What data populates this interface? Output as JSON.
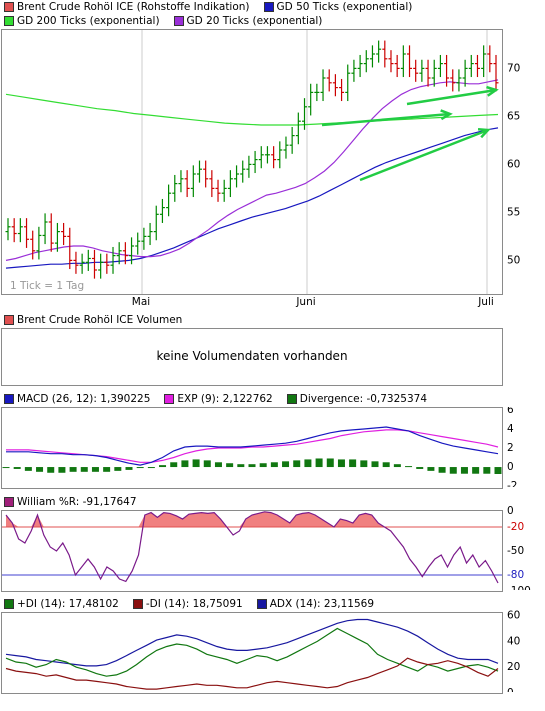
{
  "charts": {
    "price": {
      "legend": [
        {
          "label": "Brent Crude Rohöl ICE (Rohstoffe Indikation)",
          "color": "#e05050"
        },
        {
          "label": "GD 50 Ticks (exponential)",
          "color": "#1818c0"
        },
        {
          "label": "GD 200 Ticks (exponential)",
          "color": "#33dd33"
        },
        {
          "label": "GD 20 Ticks (exponential)",
          "color": "#9a2fd8"
        }
      ],
      "tick_note": "1 Tick = 1 Tag",
      "x_labels": [
        "Mai",
        "Juni",
        "Juli"
      ],
      "y_ticks": [
        "70",
        "65",
        "60",
        "55",
        "50"
      ]
    },
    "volume": {
      "legend": [
        {
          "label": "Brent Crude Rohöl ICE Volumen",
          "color": "#e05050"
        }
      ],
      "message": "keine Volumendaten vorhanden"
    },
    "macd": {
      "legend": [
        {
          "label": "MACD (26, 12): 1,390225",
          "color": "#1818c0"
        },
        {
          "label": "EXP (9): 2,122762",
          "color": "#e020e0"
        },
        {
          "label": "Divergence: -0,7325374",
          "color": "#117711"
        }
      ],
      "y_ticks": [
        "6",
        "4",
        "2",
        "0",
        "-2"
      ]
    },
    "williams": {
      "legend": [
        {
          "label": "William %R: -91,17647",
          "color": "#a0207a"
        }
      ],
      "y_ticks": [
        "0",
        "-20",
        "-50",
        "-80",
        "-100"
      ],
      "ref_labels": [
        "-20",
        "-80"
      ]
    },
    "dmi": {
      "legend": [
        {
          "label": "+DI (14): 17,48102",
          "color": "#117711"
        },
        {
          "label": "-DI (14): 18,75091",
          "color": "#8a1010"
        },
        {
          "label": "ADX (14): 23,11569",
          "color": "#1818a0"
        }
      ],
      "y_ticks": [
        "60",
        "40",
        "20",
        "0"
      ]
    }
  },
  "chart_data": [
    {
      "type": "candlestick",
      "title": "Brent Crude Rohöl ICE (Rohstoffe Indikation)",
      "ylim": [
        46.5,
        74
      ],
      "x_range": [
        0,
        100
      ],
      "x_month_ticks": {
        "Mai": 28,
        "Juni": 61,
        "Juli": 97
      },
      "candles_close": [
        53.5,
        52.8,
        53.5,
        52.2,
        51.0,
        52.6,
        54.0,
        51.8,
        53.0,
        52.5,
        50.0,
        49.5,
        49.8,
        50.2,
        49.0,
        49.8,
        49.5,
        50.5,
        51.0,
        50.5,
        51.5,
        52.0,
        52.5,
        53.0,
        54.8,
        55.5,
        57.0,
        58.0,
        58.5,
        57.5,
        59.0,
        59.5,
        58.5,
        57.5,
        57.0,
        57.5,
        58.5,
        59.0,
        59.5,
        60.0,
        60.5,
        61.0,
        61.0,
        60.5,
        61.5,
        62.0,
        63.0,
        64.5,
        66.0,
        67.5,
        67.5,
        69.0,
        68.5,
        68.0,
        67.5,
        69.5,
        70.0,
        70.5,
        71.0,
        71.5,
        72.0,
        71.0,
        70.5,
        70.0,
        71.5,
        70.0,
        69.5,
        70.0,
        69.0,
        70.0,
        70.5,
        69.0,
        68.5,
        69.0,
        70.0,
        70.5,
        70.0,
        71.5,
        70.5,
        68.5
      ],
      "series": [
        {
          "name": "GD 20 Ticks (exponential)",
          "values": [
            50.0,
            50.2,
            50.5,
            50.8,
            51.0,
            51.2,
            51.4,
            51.5,
            51.5,
            51.3,
            51.0,
            50.8,
            50.6,
            50.5,
            50.4,
            50.4,
            50.5,
            50.8,
            51.2,
            51.8,
            52.5,
            53.2,
            54.0,
            54.7,
            55.3,
            55.8,
            56.3,
            56.8,
            57.0,
            57.3,
            57.6,
            58.0,
            58.6,
            59.3,
            60.2,
            61.3,
            62.5,
            63.7,
            64.8,
            65.8,
            66.6,
            67.3,
            67.8,
            68.1,
            68.3,
            68.5,
            68.6,
            68.5,
            68.4,
            68.4,
            68.6,
            68.8
          ]
        },
        {
          "name": "GD 50 Ticks (exponential)",
          "values": [
            49.2,
            49.3,
            49.4,
            49.5,
            49.6,
            49.6,
            49.7,
            49.7,
            49.8,
            49.8,
            49.9,
            50.0,
            50.2,
            50.5,
            50.9,
            51.3,
            51.8,
            52.3,
            52.8,
            53.3,
            53.7,
            54.1,
            54.5,
            54.8,
            55.1,
            55.4,
            55.8,
            56.2,
            56.7,
            57.3,
            57.9,
            58.5,
            59.1,
            59.7,
            60.2,
            60.6,
            61.0,
            61.4,
            61.8,
            62.2,
            62.6,
            63.0,
            63.3,
            63.6,
            63.8
          ]
        },
        {
          "name": "GD 200 Ticks (exponential)",
          "values": [
            67.3,
            67.0,
            66.7,
            66.4,
            66.1,
            65.8,
            65.6,
            65.3,
            65.1,
            64.9,
            64.7,
            64.5,
            64.3,
            64.2,
            64.1,
            64.1,
            64.1,
            64.2,
            64.3,
            64.4,
            64.5,
            64.6,
            64.7,
            64.8,
            64.9,
            65.0,
            65.1,
            65.2
          ]
        }
      ]
    },
    {
      "type": "line",
      "title": "",
      "ylim": [
        -2.2,
        6.2
      ],
      "series": [
        {
          "name": "MACD (26, 12)",
          "values": [
            1.6,
            1.6,
            1.6,
            1.5,
            1.4,
            1.4,
            1.3,
            1.3,
            1.2,
            1.0,
            0.7,
            0.4,
            0.2,
            0.5,
            1.0,
            1.7,
            2.1,
            2.2,
            2.2,
            2.1,
            2.1,
            2.1,
            2.2,
            2.3,
            2.4,
            2.5,
            2.7,
            3.0,
            3.3,
            3.6,
            3.8,
            3.9,
            4.0,
            4.1,
            4.2,
            4.0,
            3.8,
            3.3,
            2.9,
            2.5,
            2.2,
            2.0,
            1.8,
            1.6,
            1.4
          ]
        },
        {
          "name": "EXP (9)",
          "values": [
            1.8,
            1.8,
            1.8,
            1.7,
            1.6,
            1.5,
            1.4,
            1.3,
            1.2,
            1.1,
            0.9,
            0.7,
            0.5,
            0.5,
            0.7,
            1.0,
            1.4,
            1.7,
            1.9,
            2.0,
            2.0,
            2.0,
            2.1,
            2.1,
            2.2,
            2.3,
            2.4,
            2.6,
            2.8,
            3.0,
            3.3,
            3.5,
            3.7,
            3.8,
            3.9,
            3.9,
            3.8,
            3.6,
            3.4,
            3.2,
            3.0,
            2.8,
            2.6,
            2.4,
            2.1
          ]
        },
        {
          "name": "Divergence",
          "values": [
            0.0,
            -0.2,
            -0.4,
            -0.5,
            -0.6,
            -0.6,
            -0.5,
            -0.5,
            -0.5,
            -0.5,
            -0.4,
            -0.3,
            -0.1,
            0.0,
            0.2,
            0.5,
            0.7,
            0.8,
            0.7,
            0.5,
            0.4,
            0.3,
            0.3,
            0.4,
            0.5,
            0.6,
            0.7,
            0.8,
            0.9,
            0.9,
            0.8,
            0.8,
            0.7,
            0.6,
            0.5,
            0.3,
            0.1,
            -0.2,
            -0.4,
            -0.6,
            -0.7,
            -0.7,
            -0.7,
            -0.7,
            -0.73
          ]
        }
      ]
    },
    {
      "type": "line",
      "title": "",
      "ylim": [
        -100,
        0
      ],
      "series": [
        {
          "name": "William %R",
          "values": [
            -5,
            -15,
            -35,
            -40,
            -25,
            -5,
            -30,
            -45,
            -50,
            -40,
            -55,
            -80,
            -70,
            -60,
            -70,
            -85,
            -70,
            -75,
            -85,
            -88,
            -75,
            -55,
            -5,
            -2,
            -8,
            -2,
            -3,
            -6,
            -10,
            -4,
            -3,
            -2,
            -3,
            -2,
            -10,
            -20,
            -30,
            -25,
            -10,
            -5,
            -3,
            -1,
            -2,
            -5,
            -10,
            -15,
            -5,
            -3,
            -2,
            -5,
            -10,
            -15,
            -20,
            -10,
            -12,
            -15,
            -5,
            -3,
            -5,
            -15,
            -20,
            -25,
            -35,
            -45,
            -60,
            -70,
            -82,
            -70,
            -60,
            -55,
            -70,
            -55,
            -45,
            -65,
            -55,
            -70,
            -62,
            -75,
            -90
          ]
        }
      ]
    },
    {
      "type": "line",
      "title": "",
      "ylim": [
        0,
        62
      ],
      "series": [
        {
          "name": "+DI (14)",
          "values": [
            27,
            24,
            23,
            20,
            22,
            26,
            24,
            20,
            18,
            15,
            13,
            14,
            17,
            22,
            28,
            33,
            36,
            38,
            37,
            34,
            30,
            28,
            26,
            23,
            26,
            29,
            28,
            25,
            28,
            32,
            36,
            40,
            45,
            50,
            46,
            42,
            38,
            30,
            26,
            23,
            20,
            17,
            22,
            20,
            17,
            19,
            21,
            22,
            20,
            17
          ]
        },
        {
          "name": "-DI (14)",
          "values": [
            19,
            17,
            16,
            15,
            13,
            14,
            12,
            10,
            10,
            9,
            8,
            7,
            5,
            4,
            3,
            3,
            4,
            5,
            6,
            7,
            6,
            6,
            5,
            4,
            4,
            6,
            8,
            9,
            8,
            7,
            6,
            5,
            4,
            5,
            8,
            10,
            12,
            15,
            18,
            21,
            27,
            24,
            22,
            23,
            25,
            23,
            20,
            16,
            13,
            19
          ]
        },
        {
          "name": "ADX (14)",
          "values": [
            30,
            29,
            28,
            26,
            25,
            24,
            23,
            22,
            21,
            21,
            22,
            25,
            29,
            33,
            37,
            41,
            43,
            45,
            44,
            42,
            39,
            36,
            34,
            33,
            33,
            34,
            35,
            37,
            39,
            42,
            45,
            48,
            51,
            54,
            56,
            57,
            57,
            55,
            53,
            51,
            48,
            44,
            39,
            34,
            30,
            27,
            26,
            26,
            26,
            23
          ]
        }
      ]
    }
  ]
}
